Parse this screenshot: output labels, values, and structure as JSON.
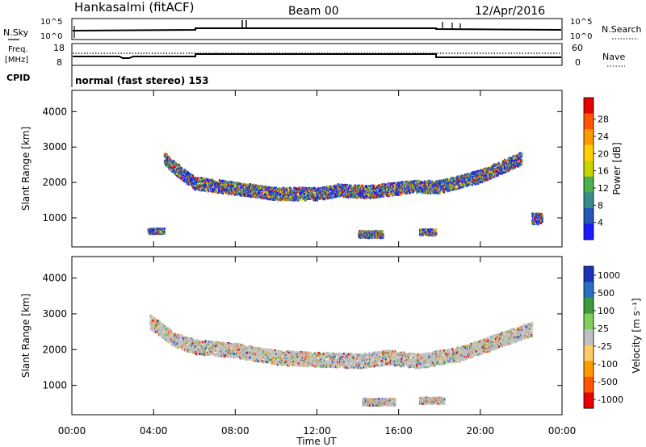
{
  "header": {
    "station": "Hankasalmi (fitACF)",
    "beam": "Beam 00",
    "date": "12/Apr/2016"
  },
  "noise_panel": {
    "left_label": "N.Sky",
    "right_label": "N.Search",
    "top_tick": "10^5",
    "bottom_tick": "10^0"
  },
  "freq_panel": {
    "left_label_line1": "Freq.",
    "left_label_line2": "[MHz]",
    "right_label": "Nave",
    "left_ticks": [
      "18",
      "8"
    ],
    "right_ticks": [
      "60",
      "0"
    ]
  },
  "cpid": {
    "label": "CPID",
    "value": "normal (fast stereo) 153"
  },
  "colors": {
    "power": [
      "#1a1aff",
      "#2456b8",
      "#3a8a8a",
      "#4caf50",
      "#c8d400",
      "#ffd000",
      "#ff9900",
      "#ff5500",
      "#e60000"
    ],
    "velocity": [
      "#e60000",
      "#ff5500",
      "#ff9900",
      "#ffcc66",
      "#c0c0c0",
      "#7fd05a",
      "#3c9a3c",
      "#2a6fc0",
      "#1a33b8"
    ],
    "ground_scatter": "#c0c0c0"
  },
  "chart_data": [
    {
      "type": "heatmap",
      "name": "power",
      "ylabel": "Slant Range [km]",
      "colorbar_label": "Power [dB]",
      "colorbar_ticks": [
        "4",
        "8",
        "12",
        "16",
        "20",
        "24",
        "28"
      ],
      "x_ticks": [
        "00:00",
        "04:00",
        "08:00",
        "12:00",
        "16:00",
        "20:00",
        "00:00"
      ],
      "xlim_hours": [
        0,
        24
      ],
      "y_ticks": [
        1000,
        2000,
        3000,
        4000
      ],
      "ylim": [
        180,
        4600
      ],
      "echo_bands": [
        {
          "hours": [
            4.5,
            5.3,
            6.0,
            8.0,
            10.0,
            12.0,
            13.0,
            14.5,
            16.5,
            18.0,
            20.0,
            22.0
          ],
          "ranges": [
            2700,
            2300,
            2000,
            1850,
            1700,
            1700,
            1800,
            1750,
            1900,
            1900,
            2200,
            2700
          ],
          "width": 180
        },
        {
          "hours": [
            3.7,
            4.5
          ],
          "ranges": [
            650,
            650
          ],
          "width": 80
        },
        {
          "hours": [
            14.0,
            15.2
          ],
          "ranges": [
            560,
            560
          ],
          "width": 100
        },
        {
          "hours": [
            17.0,
            17.8
          ],
          "ranges": [
            620,
            620
          ],
          "width": 90
        },
        {
          "hours": [
            22.5,
            23.0
          ],
          "ranges": [
            1000,
            1000
          ],
          "width": 160
        }
      ]
    },
    {
      "type": "heatmap",
      "name": "velocity",
      "xlabel": "Time UT",
      "ylabel": "Slant Range [km]",
      "colorbar_label": "Velocity [m s⁻¹]",
      "colorbar_ticks": [
        "1000",
        "500",
        "100",
        "25",
        "-25",
        "-100",
        "-500",
        "-1000"
      ],
      "x_ticks": [
        "00:00",
        "04:00",
        "08:00",
        "12:00",
        "16:00",
        "20:00",
        "00:00"
      ],
      "xlim_hours": [
        0,
        24
      ],
      "y_ticks": [
        1000,
        2000,
        3000,
        4000
      ],
      "ylim": [
        180,
        4600
      ],
      "echo_bands": [
        {
          "hours": [
            3.8,
            5.0,
            6.0,
            8.0,
            10.0,
            12.0,
            14.0,
            15.5,
            17.0,
            19.0,
            21.0,
            22.5
          ],
          "ranges": [
            2800,
            2300,
            2100,
            2000,
            1800,
            1750,
            1700,
            1800,
            1700,
            1900,
            2300,
            2600
          ],
          "width": 200
        },
        {
          "hours": [
            14.2,
            15.8
          ],
          "ranges": [
            560,
            560
          ],
          "width": 100
        },
        {
          "hours": [
            17.0,
            18.2
          ],
          "ranges": [
            600,
            600
          ],
          "width": 90
        }
      ]
    }
  ]
}
